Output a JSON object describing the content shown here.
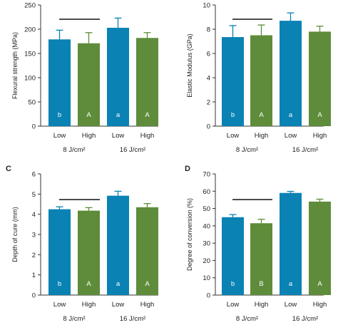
{
  "colors": {
    "low": "#0a82b4",
    "high": "#5e8c3a",
    "axis": "#333333",
    "inside_label": "#ffffff",
    "bracket": "#111111"
  },
  "chart_data": [
    {
      "panel_letter": "",
      "type": "bar",
      "ylabel": "Flexural strength (MPa)",
      "ylim": [
        0,
        250
      ],
      "yticks": [
        0,
        50,
        100,
        150,
        200,
        250
      ],
      "categories": [
        "Low",
        "High",
        "Low",
        "High"
      ],
      "groups": [
        "8 J/cm²",
        "16 J/cm²"
      ],
      "values": [
        179,
        171,
        203,
        182
      ],
      "errors": [
        19,
        22,
        20,
        11
      ],
      "bar_labels": [
        "b",
        "A",
        "a",
        "A"
      ],
      "bracket": true
    },
    {
      "panel_letter": "",
      "type": "bar",
      "ylabel": "Elastic Modulus (GPa)",
      "ylim": [
        0,
        10
      ],
      "yticks": [
        0,
        2,
        4,
        6,
        8,
        10
      ],
      "categories": [
        "Low",
        "High",
        "Low",
        "High"
      ],
      "groups": [
        "8 J/cm²",
        "16 J/cm²"
      ],
      "values": [
        7.35,
        7.5,
        8.7,
        7.8
      ],
      "errors": [
        0.95,
        0.85,
        0.65,
        0.45
      ],
      "bar_labels": [
        "b",
        "A",
        "a",
        "A"
      ],
      "bracket": true
    },
    {
      "panel_letter": "C",
      "type": "bar",
      "ylabel": "Depth of cure (mm)",
      "ylim": [
        0,
        6
      ],
      "yticks": [
        0,
        1,
        2,
        3,
        4,
        5,
        6
      ],
      "categories": [
        "Low",
        "High",
        "Low",
        "High"
      ],
      "groups": [
        "8 J/cm²",
        "16 J/cm²"
      ],
      "values": [
        4.25,
        4.18,
        4.92,
        4.35
      ],
      "errors": [
        0.12,
        0.15,
        0.22,
        0.18
      ],
      "bar_labels": [
        "b",
        "A",
        "a",
        "A"
      ],
      "bracket": true
    },
    {
      "panel_letter": "D",
      "type": "bar",
      "ylabel": "Degree of conversion (%)",
      "ylim": [
        0,
        70
      ],
      "yticks": [
        0,
        10,
        20,
        30,
        40,
        50,
        60,
        70
      ],
      "categories": [
        "Low",
        "High",
        "Low",
        "High"
      ],
      "groups": [
        "8 J/cm²",
        "16 J/cm²"
      ],
      "values": [
        45,
        41.5,
        59,
        54
      ],
      "errors": [
        1.5,
        2.3,
        0.9,
        1.4
      ],
      "bar_labels": [
        "b",
        "B",
        "a",
        "A"
      ],
      "bracket": true
    }
  ]
}
